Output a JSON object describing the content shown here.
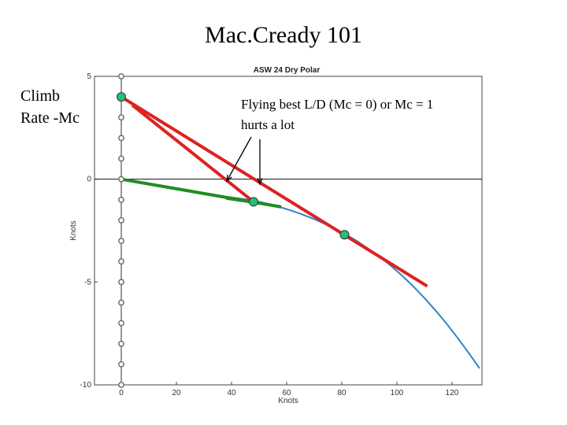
{
  "slide": {
    "title": "Mac.Cready 101",
    "side_label_line1": "Climb",
    "side_label_line2": "Rate -Mc",
    "annotation_line1": "Flying best L/D (Mc = 0) or Mc = 1",
    "annotation_line2": "hurts a lot"
  },
  "chart_data": {
    "type": "line",
    "title": "ASW 24 Dry Polar",
    "xlabel": "Knots",
    "ylabel": "Knots",
    "xlim": [
      0,
      130
    ],
    "ylim": [
      -10,
      5
    ],
    "x_ticks": [
      0,
      20,
      40,
      60,
      80,
      100,
      120
    ],
    "y_ticks": [
      -10,
      -5,
      0,
      5
    ],
    "zero_line": true,
    "grid": false,
    "colors": {
      "polar": "#2f84c4",
      "mc_tangent": "#dd2222",
      "ld_tangent": "#228b22",
      "marker": "#22c07a",
      "axis_markers": "#666666"
    },
    "series": [
      {
        "kind": "polar",
        "x": [
          38,
          42,
          46,
          50,
          54,
          58,
          62,
          66,
          70,
          74,
          78,
          82,
          86,
          90,
          94,
          98,
          102,
          106,
          110,
          114,
          118,
          122,
          126,
          130
        ],
        "y": [
          -0.85,
          -0.92,
          -1.0,
          -1.1,
          -1.22,
          -1.37,
          -1.54,
          -1.73,
          -1.94,
          -2.18,
          -2.44,
          -2.73,
          -3.05,
          -3.41,
          -3.8,
          -4.23,
          -4.7,
          -5.22,
          -5.78,
          -6.38,
          -7.02,
          -7.71,
          -8.44,
          -9.2
        ]
      },
      {
        "kind": "mc-tangent",
        "x": [
          0,
          111
        ],
        "y": [
          4.0,
          -5.2
        ]
      },
      {
        "kind": "ld-tangent",
        "x": [
          0,
          58
        ],
        "y": [
          0.0,
          -1.35
        ]
      },
      {
        "kind": "ld-extension",
        "x": [
          38,
          58
        ],
        "y": [
          -0.95,
          -1.35
        ]
      },
      {
        "kind": "mc-to-ld-line",
        "x": [
          4,
          48
        ],
        "y": [
          3.6,
          -1.1
        ]
      }
    ],
    "markers": [
      {
        "x": 0,
        "y": 4.0
      },
      {
        "x": 48,
        "y": -1.1
      },
      {
        "x": 81,
        "y": -2.7
      }
    ],
    "axis_markers_y": [
      5,
      4,
      3,
      2,
      1,
      0,
      -1,
      -2,
      -3,
      -4,
      -5,
      -6,
      -7,
      -8,
      -9,
      -10
    ],
    "arrows": [
      {
        "from": [
          319,
          174
        ],
        "to": [
          288,
          230
        ]
      },
      {
        "from": [
          330,
          177
        ],
        "to": [
          330,
          234
        ]
      }
    ]
  }
}
